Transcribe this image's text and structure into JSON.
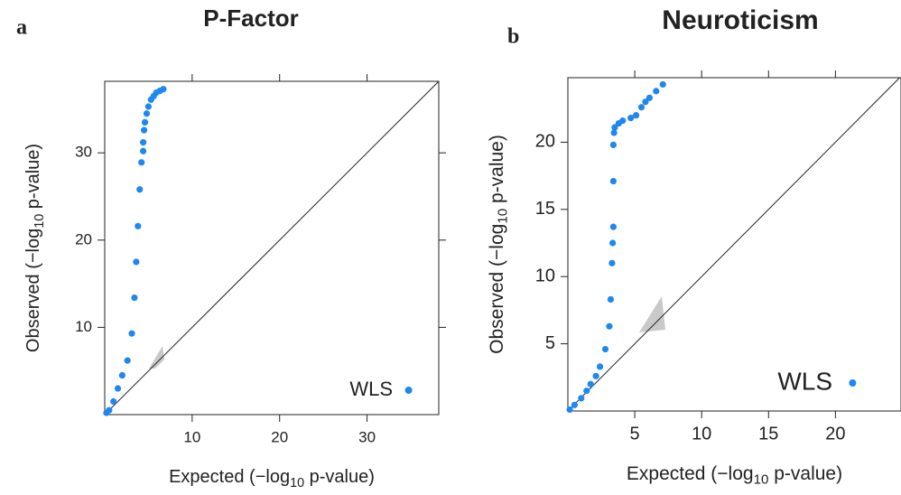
{
  "chart_data": [
    {
      "type": "scatter",
      "panel_label": "a",
      "title": "P-Factor",
      "xlabel": [
        "Expected (−log",
        "10",
        " p-value)"
      ],
      "ylabel": [
        "Observed (−log",
        "10",
        " p-value)"
      ],
      "xlim": [
        0,
        38.2
      ],
      "ylim": [
        0,
        38.2
      ],
      "xticks": [
        10,
        20,
        30
      ],
      "yticks": [
        10,
        20,
        30
      ],
      "legend": "bottom-right",
      "reference_line": true,
      "series": [
        {
          "name": "WLS",
          "color": "#1e88f0",
          "x": [
            0.2,
            0.5,
            1.0,
            1.5,
            2.0,
            2.6,
            3.1,
            3.4,
            3.6,
            3.8,
            4.0,
            4.2,
            4.4,
            4.4,
            4.5,
            4.6,
            4.8,
            5.0,
            5.3,
            5.6,
            5.9,
            6.3,
            6.7
          ],
          "y": [
            0.2,
            0.5,
            1.5,
            3.0,
            4.5,
            6.2,
            9.3,
            13.4,
            17.5,
            21.6,
            25.8,
            28.9,
            30.2,
            31.2,
            32.6,
            33.5,
            34.5,
            35.3,
            36.1,
            36.5,
            36.9,
            37.1,
            37.3
          ]
        }
      ]
    },
    {
      "type": "scatter",
      "panel_label": "b",
      "title": "Neuroticism",
      "xlabel": [
        "Expected (−log",
        "10",
        " p-value)"
      ],
      "ylabel": [
        "Observed (−log",
        "10",
        " p-value)"
      ],
      "xlim": [
        0,
        24.9
      ],
      "ylim": [
        0,
        24.8
      ],
      "xticks": [
        5,
        10,
        15,
        20
      ],
      "yticks": [
        5,
        10,
        15,
        20
      ],
      "legend": "bottom-right",
      "reference_line": true,
      "series": [
        {
          "name": "WLS",
          "color": "#1e88f0",
          "x": [
            0.14,
            0.5,
            1.0,
            1.4,
            1.7,
            2.1,
            2.4,
            2.8,
            3.1,
            3.2,
            3.3,
            3.35,
            3.4,
            3.4,
            3.4,
            3.45,
            3.5,
            3.8,
            4.1,
            4.7,
            5.1,
            5.5,
            5.8,
            6.1,
            6.6,
            7.1
          ],
          "y": [
            0.1,
            0.45,
            0.95,
            1.5,
            2.0,
            2.6,
            3.3,
            4.6,
            6.3,
            8.3,
            11.0,
            12.5,
            13.7,
            17.1,
            19.8,
            20.7,
            21.1,
            21.4,
            21.6,
            21.8,
            22.0,
            22.6,
            23.0,
            23.3,
            23.8,
            24.3
          ]
        }
      ]
    }
  ]
}
